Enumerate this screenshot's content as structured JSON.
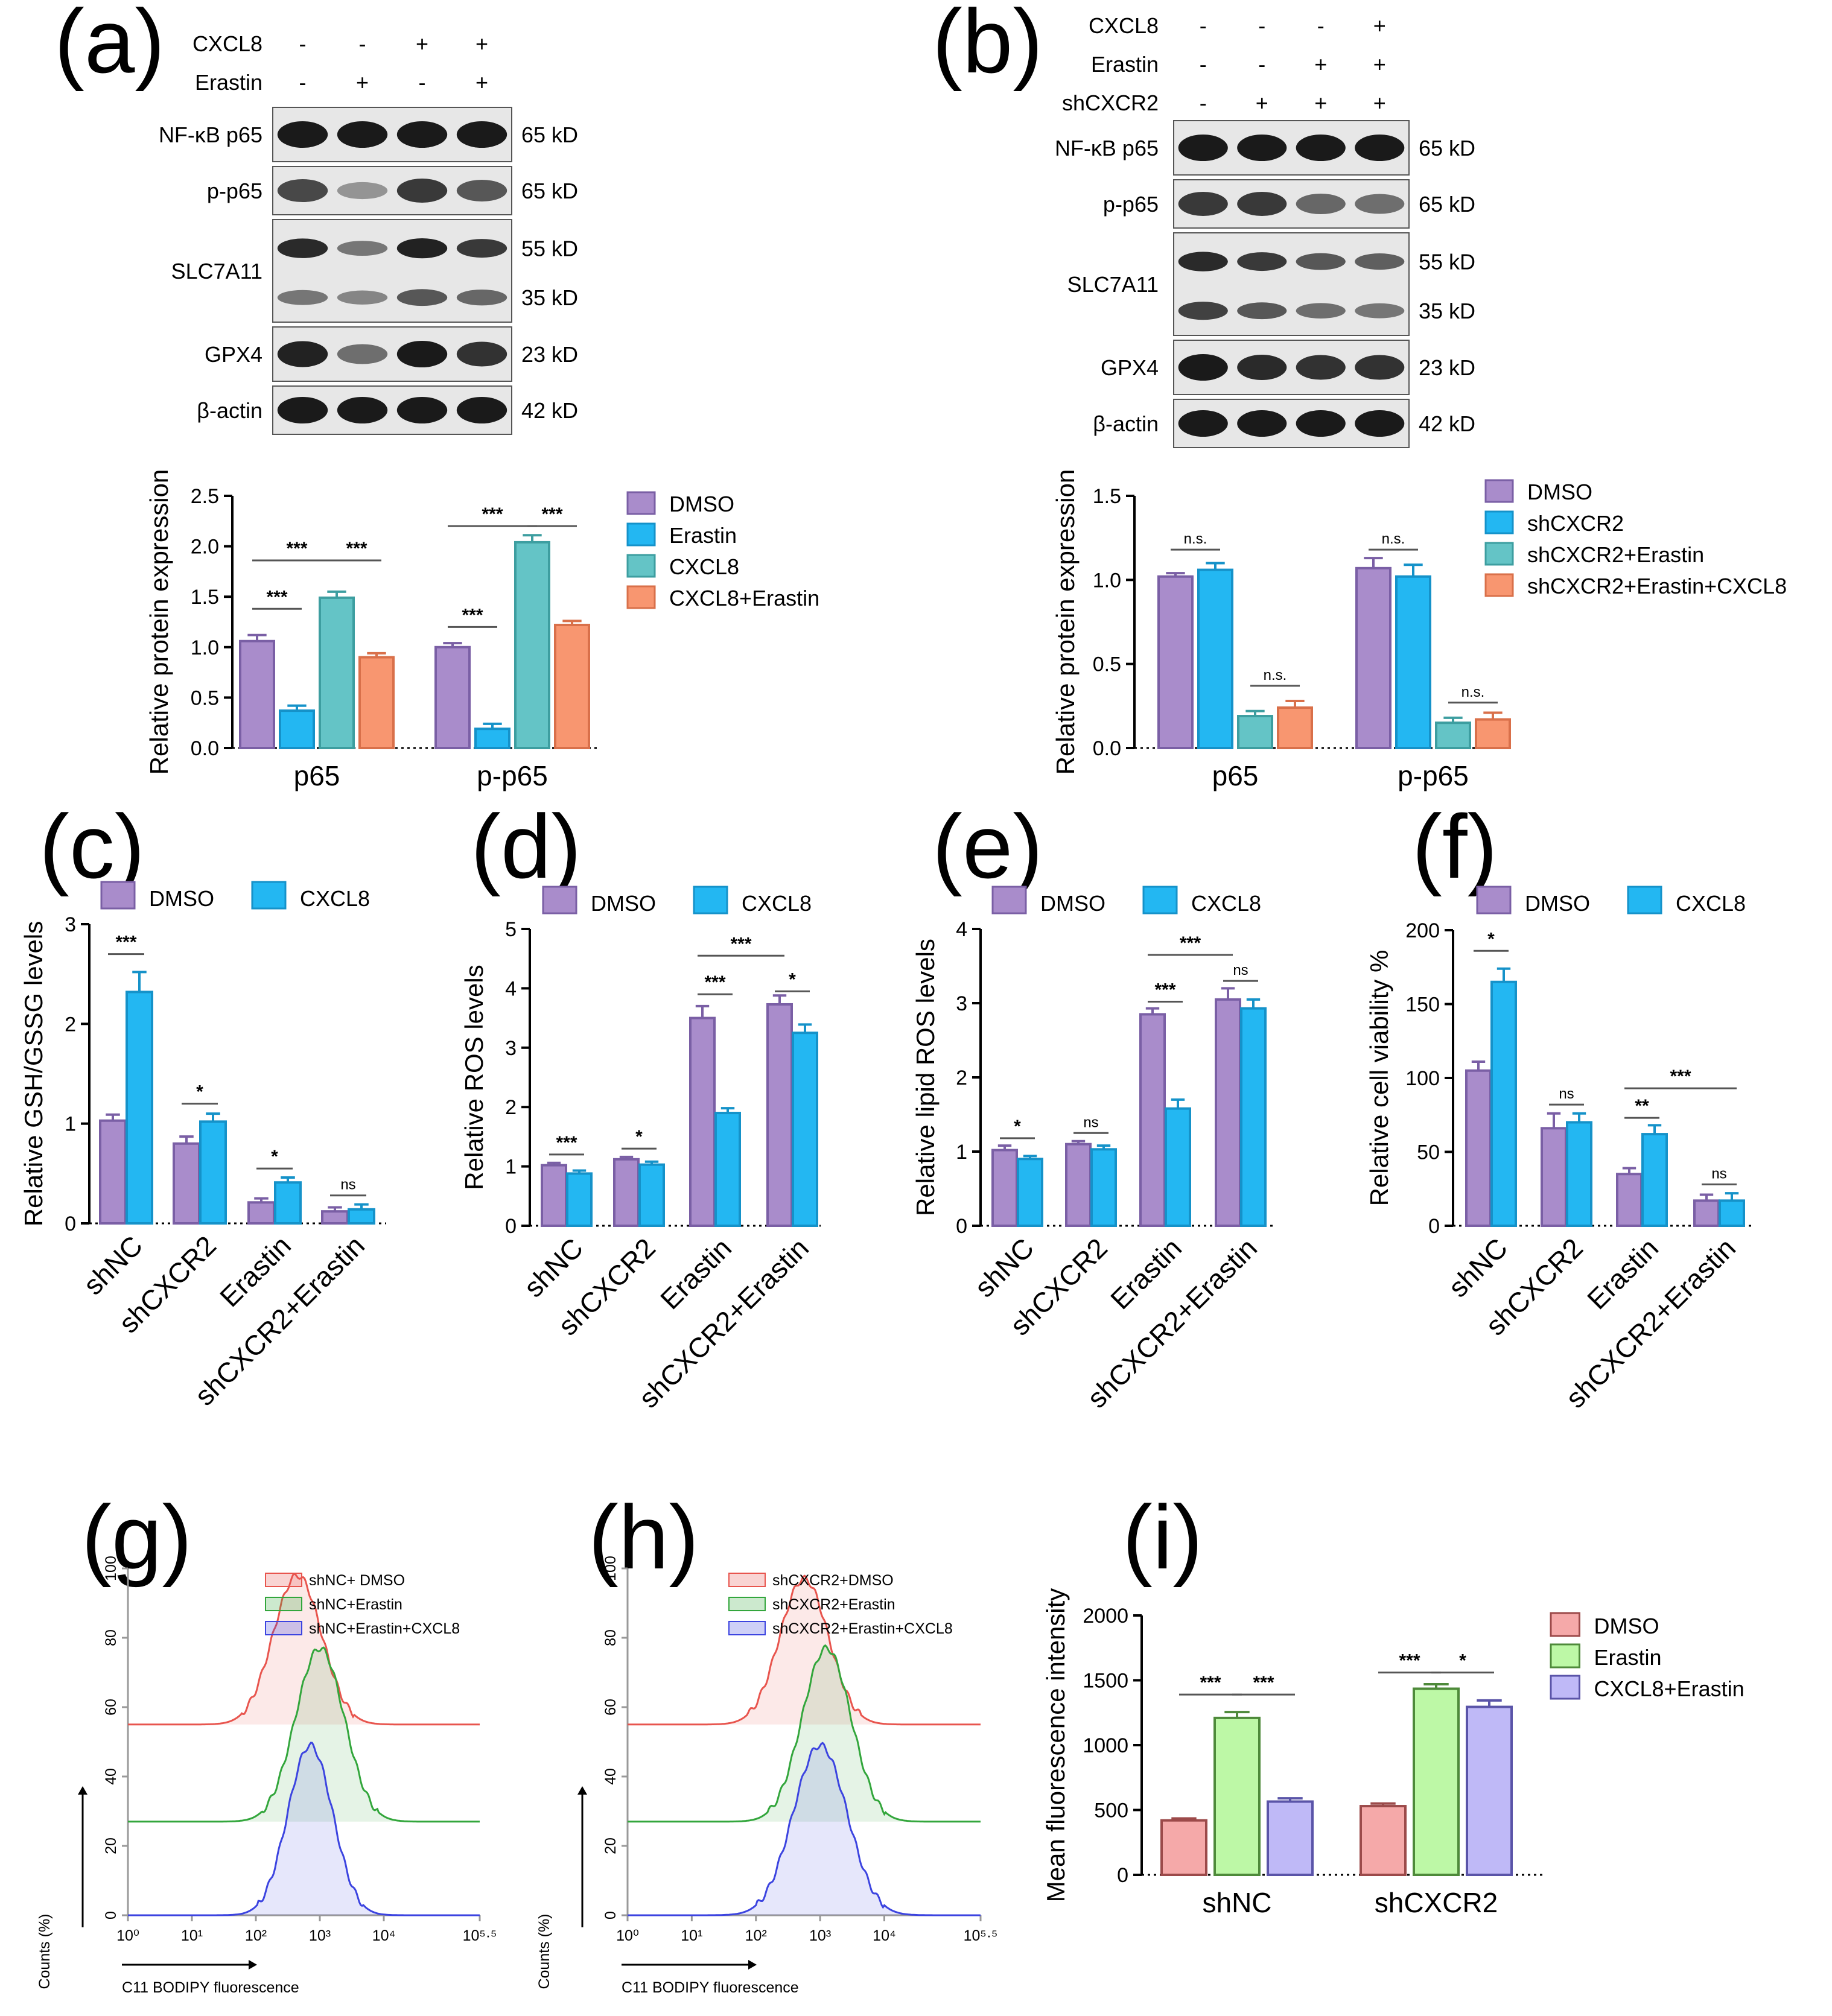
{
  "colors": {
    "dmso": "#A98CCB",
    "erastin": "#23B7F2",
    "cxcl8": "#64C4C6",
    "cxcl8_erastin": "#F89670",
    "axis": "#000000",
    "fc_red": "#E8554E",
    "fc_green": "#33A63C",
    "fc_blue": "#3C44E0",
    "mfi_dmso": "#F5A9A9",
    "mfi_erastin": "#BDF8A6",
    "mfi_cxcl8_erastin": "#BFB9F7"
  },
  "panel_a": {
    "label": "(a)",
    "header_rows": [
      {
        "name": "CXCL8",
        "signs": [
          "-",
          "-",
          "+",
          "+"
        ]
      },
      {
        "name": "Erastin",
        "signs": [
          "-",
          "+",
          "-",
          "+"
        ]
      }
    ],
    "blots": [
      {
        "label": "NF-κB p65",
        "sizes": [
          "65 kD"
        ]
      },
      {
        "label": "p-p65",
        "sizes": [
          "65 kD"
        ]
      },
      {
        "label": "SLC7A11",
        "sizes": [
          "55 kD",
          "35 kD"
        ]
      },
      {
        "label": "GPX4",
        "sizes": [
          "23 kD"
        ]
      },
      {
        "label": "β-actin",
        "sizes": [
          "42 kD"
        ]
      }
    ]
  },
  "panel_b": {
    "label": "(b)",
    "header_rows": [
      {
        "name": "CXCL8",
        "signs": [
          "-",
          "-",
          "-",
          "+"
        ]
      },
      {
        "name": "Erastin",
        "signs": [
          "-",
          "-",
          "+",
          "+"
        ]
      },
      {
        "name": "shCXCR2",
        "signs": [
          "-",
          "+",
          "+",
          "+"
        ]
      }
    ],
    "blots": [
      {
        "label": "NF-κB p65",
        "sizes": [
          "65 kD"
        ]
      },
      {
        "label": "p-p65",
        "sizes": [
          "65 kD"
        ]
      },
      {
        "label": "SLC7A11",
        "sizes": [
          "55 kD",
          "35 kD"
        ]
      },
      {
        "label": "GPX4",
        "sizes": [
          "23 kD"
        ]
      },
      {
        "label": "β-actin",
        "sizes": [
          "42 kD"
        ]
      }
    ]
  },
  "panel_c_label": "(c)",
  "panel_d_label": "(d)",
  "panel_e_label": "(e)",
  "panel_f_label": "(f)",
  "panel_g_label": "(g)",
  "panel_h_label": "(h)",
  "panel_i_label": "(i)",
  "chart_data": [
    {
      "id": "a",
      "type": "bar",
      "ylabel": "Relative protein expression",
      "xlabel": "",
      "ylim": [
        0,
        2.5
      ],
      "yticks": [
        0.0,
        0.5,
        1.0,
        1.5,
        2.0,
        2.5
      ],
      "ytick_labels": [
        "0.0",
        "0.5",
        "1.0",
        "1.5",
        "2.0",
        "2.5"
      ],
      "categories": [
        "p65",
        "p-p65"
      ],
      "series": [
        {
          "name": "DMSO",
          "color": "#A98CCB",
          "values": [
            1.06,
            1.0
          ],
          "errors": [
            0.06,
            0.04
          ]
        },
        {
          "name": "Erastin",
          "color": "#23B7F2",
          "values": [
            0.37,
            0.19
          ],
          "errors": [
            0.05,
            0.05
          ]
        },
        {
          "name": "CXCL8",
          "color": "#64C4C6",
          "values": [
            1.49,
            2.04
          ],
          "errors": [
            0.06,
            0.07
          ]
        },
        {
          "name": "CXCL8+Erastin",
          "color": "#F89670",
          "values": [
            0.9,
            1.22
          ],
          "errors": [
            0.04,
            0.04
          ]
        }
      ],
      "annotations": [
        {
          "group": 0,
          "from": 0,
          "to": 1,
          "y": 1.38,
          "text": "***"
        },
        {
          "group": 0,
          "from": 0,
          "to": 2,
          "y": 1.86,
          "text": "***"
        },
        {
          "group": 0,
          "from": 2,
          "to": 3,
          "y": 1.86,
          "text": "***"
        },
        {
          "group": 1,
          "from": 0,
          "to": 1,
          "y": 1.2,
          "text": "***"
        },
        {
          "group": 1,
          "from": 0,
          "to": 2,
          "y": 2.2,
          "text": "***"
        },
        {
          "group": 1,
          "from": 2,
          "to": 3,
          "y": 2.2,
          "text": "***"
        }
      ]
    },
    {
      "id": "b",
      "type": "bar",
      "ylabel": "Relative protein expression",
      "xlabel": "",
      "ylim": [
        0,
        1.5
      ],
      "yticks": [
        0.0,
        0.5,
        1.0,
        1.5
      ],
      "ytick_labels": [
        "0.0",
        "0.5",
        "1.0",
        "1.5"
      ],
      "categories": [
        "p65",
        "p-p65"
      ],
      "series": [
        {
          "name": "DMSO",
          "color": "#A98CCB",
          "values": [
            1.02,
            1.07
          ],
          "errors": [
            0.02,
            0.06
          ]
        },
        {
          "name": "shCXCR2",
          "color": "#23B7F2",
          "values": [
            1.06,
            1.02
          ],
          "errors": [
            0.04,
            0.07
          ]
        },
        {
          "name": "shCXCR2+Erastin",
          "color": "#64C4C6",
          "values": [
            0.19,
            0.15
          ],
          "errors": [
            0.03,
            0.03
          ]
        },
        {
          "name": "shCXCR2+Erastin+CXCL8",
          "color": "#F89670",
          "values": [
            0.24,
            0.17
          ],
          "errors": [
            0.04,
            0.04
          ]
        }
      ],
      "annotations": [
        {
          "group": 0,
          "from": 0,
          "to": 1,
          "y": 1.18,
          "text": "n.s."
        },
        {
          "group": 0,
          "from": 2,
          "to": 3,
          "y": 0.37,
          "text": "n.s."
        },
        {
          "group": 1,
          "from": 0,
          "to": 1,
          "y": 1.18,
          "text": "n.s."
        },
        {
          "group": 1,
          "from": 2,
          "to": 3,
          "y": 0.27,
          "text": "n.s."
        }
      ]
    },
    {
      "id": "c",
      "type": "bar",
      "ylabel": "Relative GSH/GSSG levels",
      "xlabel": "",
      "ylim": [
        0,
        3
      ],
      "yticks": [
        0,
        1,
        2,
        3
      ],
      "ytick_labels": [
        "0",
        "1",
        "2",
        "3"
      ],
      "categories": [
        "shNC",
        "shCXCR2",
        "Erastin",
        "shCXCR2+Erastin"
      ],
      "series": [
        {
          "name": "DMSO",
          "color": "#A98CCB",
          "values": [
            1.03,
            0.8,
            0.21,
            0.12
          ],
          "errors": [
            0.06,
            0.07,
            0.04,
            0.04
          ]
        },
        {
          "name": "CXCL8",
          "color": "#23B7F2",
          "values": [
            2.32,
            1.02,
            0.41,
            0.14
          ],
          "errors": [
            0.2,
            0.08,
            0.05,
            0.05
          ]
        }
      ],
      "annotations": [
        {
          "group": 0,
          "from": 0,
          "to": 1,
          "y": 2.7,
          "text": "***"
        },
        {
          "group": 1,
          "from": 0,
          "to": 1,
          "y": 1.2,
          "text": "*"
        },
        {
          "group": 2,
          "from": 0,
          "to": 1,
          "y": 0.55,
          "text": "*"
        },
        {
          "group": 3,
          "from": 0,
          "to": 1,
          "y": 0.28,
          "text": "ns"
        }
      ]
    },
    {
      "id": "d",
      "type": "bar",
      "ylabel": "Relative ROS levels",
      "xlabel": "",
      "ylim": [
        0,
        5
      ],
      "yticks": [
        0,
        1,
        2,
        3,
        4,
        5
      ],
      "ytick_labels": [
        "0",
        "1",
        "2",
        "3",
        "4",
        "5"
      ],
      "categories": [
        "shNC",
        "shCXCR2",
        "Erastin",
        "shCXCR2+Erastin"
      ],
      "series": [
        {
          "name": "DMSO",
          "color": "#A98CCB",
          "values": [
            1.02,
            1.12,
            3.5,
            3.73
          ],
          "errors": [
            0.04,
            0.04,
            0.2,
            0.15
          ]
        },
        {
          "name": "CXCL8",
          "color": "#23B7F2",
          "values": [
            0.88,
            1.03,
            1.9,
            3.25
          ],
          "errors": [
            0.05,
            0.05,
            0.08,
            0.14
          ]
        }
      ],
      "annotations": [
        {
          "group": 0,
          "from": 0,
          "to": 1,
          "y": 1.2,
          "text": "***"
        },
        {
          "group": 1,
          "from": 0,
          "to": 1,
          "y": 1.3,
          "text": "*"
        },
        {
          "group": 2,
          "from": 0,
          "to": 1,
          "y": 3.9,
          "text": "***"
        },
        {
          "group": 3,
          "from": 0,
          "to": 1,
          "y": 3.95,
          "text": "*"
        },
        {
          "span": [
            2,
            0,
            3,
            0
          ],
          "y": 4.55,
          "text": "***"
        }
      ]
    },
    {
      "id": "e",
      "type": "bar",
      "ylabel": "Relative lipid ROS levels",
      "xlabel": "",
      "ylim": [
        0,
        4
      ],
      "yticks": [
        0,
        1,
        2,
        3,
        4
      ],
      "ytick_labels": [
        "0",
        "1",
        "2",
        "3",
        "4"
      ],
      "categories": [
        "shNC",
        "shCXCR2",
        "Erastin",
        "shCXCR2+Erastin"
      ],
      "series": [
        {
          "name": "DMSO",
          "color": "#A98CCB",
          "values": [
            1.02,
            1.1,
            2.85,
            3.05
          ],
          "errors": [
            0.06,
            0.04,
            0.08,
            0.15
          ]
        },
        {
          "name": "CXCL8",
          "color": "#23B7F2",
          "values": [
            0.9,
            1.03,
            1.58,
            2.93
          ],
          "errors": [
            0.04,
            0.05,
            0.12,
            0.12
          ]
        }
      ],
      "annotations": [
        {
          "group": 0,
          "from": 0,
          "to": 1,
          "y": 1.18,
          "text": "*"
        },
        {
          "group": 1,
          "from": 0,
          "to": 1,
          "y": 1.25,
          "text": "ns"
        },
        {
          "group": 2,
          "from": 0,
          "to": 1,
          "y": 3.02,
          "text": "***"
        },
        {
          "group": 3,
          "from": 0,
          "to": 1,
          "y": 3.3,
          "text": "ns"
        },
        {
          "span": [
            2,
            0,
            3,
            0
          ],
          "y": 3.65,
          "text": "***"
        }
      ]
    },
    {
      "id": "f",
      "type": "bar",
      "ylabel": "Relative cell viability %",
      "xlabel": "",
      "ylim": [
        0,
        200
      ],
      "yticks": [
        0,
        50,
        100,
        150,
        200
      ],
      "ytick_labels": [
        "0",
        "50",
        "100",
        "150",
        "200"
      ],
      "categories": [
        "shNC",
        "shCXCR2",
        "Erastin",
        "shCXCR2+Erastin"
      ],
      "series": [
        {
          "name": "DMSO",
          "color": "#A98CCB",
          "values": [
            105,
            66,
            35,
            17
          ],
          "errors": [
            6,
            10,
            4,
            4
          ]
        },
        {
          "name": "CXCL8",
          "color": "#23B7F2",
          "values": [
            165,
            70,
            62,
            17
          ],
          "errors": [
            9,
            6,
            6,
            5
          ]
        }
      ],
      "annotations": [
        {
          "group": 0,
          "from": 0,
          "to": 1,
          "y": 186,
          "text": "*"
        },
        {
          "group": 1,
          "from": 0,
          "to": 1,
          "y": 82,
          "text": "ns"
        },
        {
          "group": 2,
          "from": 0,
          "to": 1,
          "y": 73,
          "text": "**"
        },
        {
          "group": 3,
          "from": 0,
          "to": 1,
          "y": 28,
          "text": "ns"
        },
        {
          "span": [
            2,
            0,
            3,
            1
          ],
          "y": 93,
          "text": "***"
        }
      ]
    },
    {
      "id": "g",
      "type": "area",
      "xlabel": "C11 BODIPY fluorescence",
      "ylabel": "Counts (%)",
      "yticks": [
        0,
        20,
        40,
        60,
        80,
        100
      ],
      "ytick_labels": [
        "0",
        "20",
        "40",
        "60",
        "80",
        "100"
      ],
      "xtick_labels": [
        "10⁰",
        "10¹",
        "10²",
        "10³",
        "10⁴",
        "10⁵·⁵"
      ],
      "series": [
        {
          "name": "shNC+ DMSO",
          "color": "#E8554E",
          "offset": 55,
          "peak_log": 2.65,
          "width": 0.38,
          "height": 43
        },
        {
          "name": "shNC+Erastin",
          "color": "#33A63C",
          "offset": 27,
          "peak_log": 3.0,
          "width": 0.38,
          "height": 50
        },
        {
          "name": "shNC+Erastin+CXCL8",
          "color": "#3C44E0",
          "offset": 0,
          "peak_log": 2.85,
          "width": 0.35,
          "height": 49
        }
      ]
    },
    {
      "id": "h",
      "type": "area",
      "xlabel": "C11 BODIPY fluorescence",
      "ylabel": "Counts (%)",
      "yticks": [
        0,
        20,
        40,
        60,
        80,
        100
      ],
      "ytick_labels": [
        "0",
        "20",
        "40",
        "60",
        "80",
        "100"
      ],
      "xtick_labels": [
        "10⁰",
        "10¹",
        "10²",
        "10³",
        "10⁴",
        "10⁵·⁵"
      ],
      "series": [
        {
          "name": "shCXCR2+DMSO",
          "color": "#E8554E",
          "offset": 55,
          "peak_log": 2.75,
          "width": 0.38,
          "height": 42
        },
        {
          "name": "shCXCR2+Erastin",
          "color": "#33A63C",
          "offset": 27,
          "peak_log": 3.1,
          "width": 0.38,
          "height": 50
        },
        {
          "name": "shCXCR2+Erastin+CXCL8",
          "color": "#3C44E0",
          "offset": 0,
          "peak_log": 3.0,
          "width": 0.42,
          "height": 49
        }
      ]
    },
    {
      "id": "i",
      "type": "bar",
      "ylabel": "Mean fluorescence intensity",
      "xlabel": "",
      "ylim": [
        0,
        2000
      ],
      "yticks": [
        0,
        500,
        1000,
        1500,
        2000
      ],
      "ytick_labels": [
        "0",
        "500",
        "1000",
        "1500",
        "2000"
      ],
      "categories": [
        "shNC",
        "shCXCR2"
      ],
      "series": [
        {
          "name": "DMSO",
          "color": "#F5A9A9",
          "values": [
            420,
            530
          ],
          "errors": [
            15,
            20
          ]
        },
        {
          "name": "Erastin",
          "color": "#BDF8A6",
          "values": [
            1210,
            1435
          ],
          "errors": [
            45,
            35
          ]
        },
        {
          "name": "CXCL8+Erastin",
          "color": "#BFB9F7",
          "values": [
            565,
            1295
          ],
          "errors": [
            25,
            50
          ]
        }
      ],
      "annotations": [
        {
          "group": 0,
          "from": 0,
          "to": 1,
          "y": 1390,
          "text": "***"
        },
        {
          "group": 0,
          "from": 1,
          "to": 2,
          "y": 1390,
          "text": "***"
        },
        {
          "group": 1,
          "from": 0,
          "to": 1,
          "y": 1560,
          "text": "***"
        },
        {
          "group": 1,
          "from": 1,
          "to": 2,
          "y": 1560,
          "text": "*"
        }
      ]
    }
  ]
}
